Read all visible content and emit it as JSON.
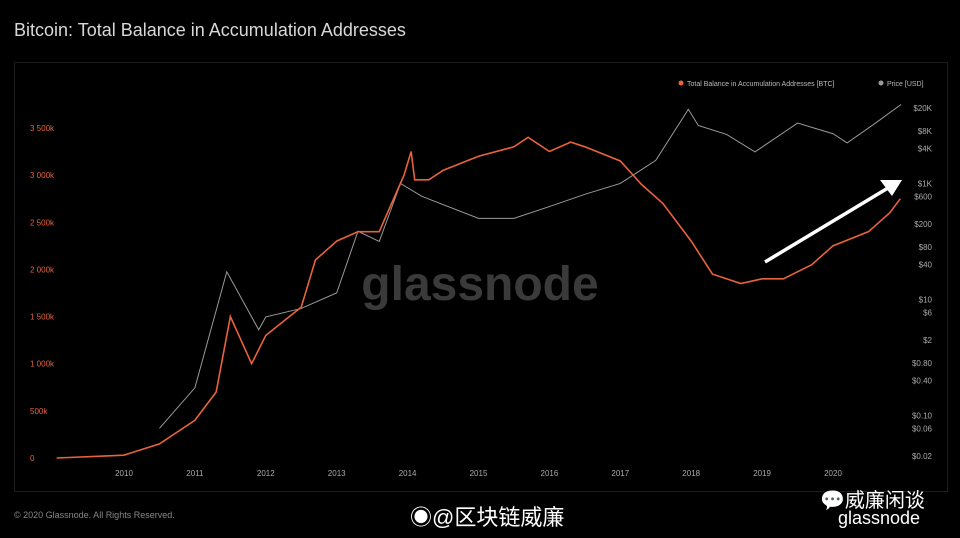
{
  "title": "Bitcoin: Total Balance in Accumulation Addresses",
  "footer": {
    "copyright": "© 2020 Glassnode. All Rights Reserved.",
    "weibo": "@区块链威廉",
    "wechat": "威廉闲谈",
    "brand": "glassnode"
  },
  "chart_data": {
    "type": "line",
    "title": "Bitcoin: Total Balance in Accumulation Addresses",
    "watermark": "glassnode",
    "legend_placement": "top-right",
    "grid": false,
    "x_ticks": [
      "2010",
      "2011",
      "2012",
      "2013",
      "2014",
      "2015",
      "2016",
      "2017",
      "2018",
      "2019",
      "2020"
    ],
    "y_left": {
      "ticks": [
        "0",
        "500k",
        "1 000k",
        "1 500k",
        "2 000k",
        "2 500k",
        "3 000k",
        "3 500k"
      ],
      "range": [
        0,
        3500
      ],
      "unit": "k BTC",
      "color": "#e8633a"
    },
    "y_right": {
      "ticks": [
        "$20K",
        "$8K",
        "$4K",
        "$1K",
        "$600",
        "$200",
        "$80",
        "$40",
        "$10",
        "$6",
        "$2",
        "$0.80",
        "$0.40",
        "$0.10",
        "$0.06",
        "$0.02"
      ],
      "scale": "log",
      "range": [
        0.02,
        20000
      ],
      "color": "#9a9a9a"
    },
    "series": [
      {
        "name": "Total Balance in Accumulation Addresses [BTC]",
        "color": "#e8633a",
        "axis": "left",
        "x": [
          2009.05,
          2010,
          2010.5,
          2011,
          2011.3,
          2011.45,
          2011.5,
          2011.8,
          2012,
          2012.5,
          2012.7,
          2013,
          2013.3,
          2013.6,
          2013.95,
          2014.05,
          2014.1,
          2014.3,
          2014.5,
          2015,
          2015.5,
          2015.7,
          2016,
          2016.3,
          2016.5,
          2017,
          2017.3,
          2017.6,
          2018,
          2018.3,
          2018.7,
          2019,
          2019.3,
          2019.7,
          2020,
          2020.5,
          2020.8,
          2020.95
        ],
        "y": [
          0,
          30,
          150,
          400,
          700,
          1300,
          1500,
          1000,
          1300,
          1600,
          2100,
          2300,
          2400,
          2400,
          3000,
          3250,
          2950,
          2950,
          3050,
          3200,
          3300,
          3400,
          3250,
          3350,
          3300,
          3150,
          2900,
          2700,
          2300,
          1950,
          1850,
          1900,
          1900,
          2050,
          2250,
          2400,
          2600,
          2750
        ]
      },
      {
        "name": "Price [USD]",
        "color": "#9a9a9a",
        "axis": "right",
        "x": [
          2010.5,
          2011,
          2011.45,
          2011.9,
          2012,
          2012.5,
          2013,
          2013.3,
          2013.6,
          2013.9,
          2014.2,
          2015,
          2015.5,
          2016,
          2016.5,
          2017,
          2017.5,
          2017.96,
          2018.1,
          2018.5,
          2018.9,
          2019.5,
          2020,
          2020.2,
          2020.6,
          2020.96
        ],
        "y": [
          0.06,
          0.3,
          30,
          3,
          5,
          7,
          13,
          150,
          100,
          1000,
          600,
          250,
          250,
          400,
          650,
          1000,
          2500,
          19000,
          10000,
          7000,
          3500,
          11000,
          7200,
          5000,
          11000,
          23000
        ]
      }
    ],
    "annotation": "white upward arrow over 2019-2020 rise"
  }
}
